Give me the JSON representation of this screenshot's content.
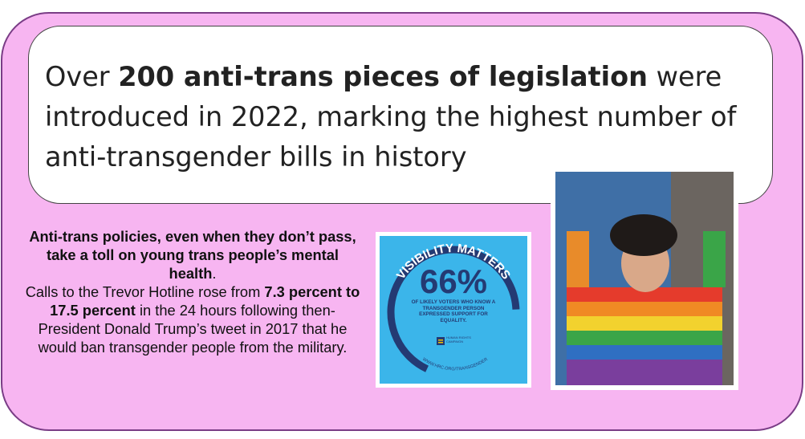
{
  "headline": {
    "parts": [
      "Over",
      "200 anti-trans pieces of legislation",
      "were introduced in 2022, marking the highest number of anti-transgender bills in history"
    ]
  },
  "body": {
    "bold_intro": "Anti-trans policies, even when they don’t pass, take a toll on young trans people’s mental health",
    "period": ".",
    "text_1": "Calls to the Trevor Hotline rose from",
    "bold_stat": "7.3 percent to 17.5 percent",
    "text_2": "in the 24 hours following then-President Donald Trump’s tweet in 2017 that he would ban transgender people from the military."
  },
  "infographic": {
    "arc_title": "VISIBILITY MATTERS",
    "big_stat": "66%",
    "caption": "OF LIKELY VOTERS WHO KNOW A TRANSGENDER PERSON EXPRESSED SUPPORT FOR EQUALITY.",
    "org": "HUMAN RIGHTS CAMPAIGN",
    "url": "WWW.HRC.ORG/TRANSGENDER"
  }
}
